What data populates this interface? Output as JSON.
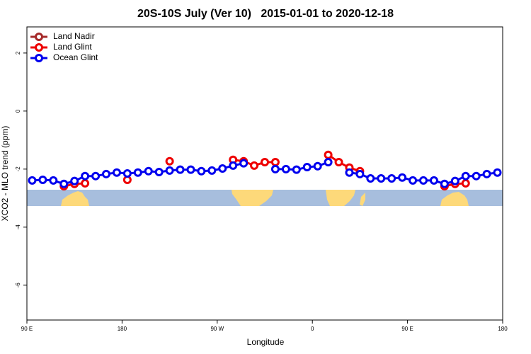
{
  "chart_data": {
    "type": "line",
    "title": "20S-10S July (Ver 10)   2015-01-01 to 2020-12-18",
    "xlabel": "Longitude",
    "ylabel": "XCO2 - MLO trend (ppm)",
    "x": [
      95,
      105,
      115,
      125,
      135,
      145,
      155,
      165,
      175,
      185,
      195,
      205,
      215,
      225,
      235,
      245,
      255,
      265,
      275,
      285,
      295,
      305,
      315,
      325,
      335,
      345,
      355,
      365,
      375,
      385,
      395,
      405,
      415,
      425,
      435,
      445,
      455,
      465,
      475,
      485,
      495,
      505,
      515,
      525,
      535
    ],
    "xlim": [
      90,
      540
    ],
    "xticks": [
      {
        "value": 90,
        "label": "90 E"
      },
      {
        "value": 180,
        "label": "180"
      },
      {
        "value": 270,
        "label": "90 W"
      },
      {
        "value": 360,
        "label": "0"
      },
      {
        "value": 450,
        "label": "90 E"
      },
      {
        "value": 540,
        "label": "180"
      }
    ],
    "ylim": [
      -7.2,
      2.9
    ],
    "yticks": [
      2,
      0,
      -2,
      -4,
      -6
    ],
    "legend": "top-left",
    "series": [
      {
        "name": "Land Nadir",
        "color": "#a52a2a",
        "values": [
          null,
          null,
          null,
          null,
          null,
          null,
          null,
          null,
          null,
          null,
          null,
          null,
          null,
          null,
          null,
          null,
          null,
          null,
          null,
          null,
          null,
          null,
          null,
          null,
          null,
          null,
          null,
          null,
          null,
          null,
          null,
          null,
          null,
          null,
          null,
          null,
          null,
          null,
          null,
          null,
          null,
          null,
          null,
          null,
          null
        ]
      },
      {
        "name": "Land Glint",
        "color": "#ee0000",
        "values": [
          null,
          null,
          null,
          -2.59,
          -2.51,
          -2.49,
          null,
          null,
          null,
          -2.37,
          null,
          null,
          null,
          -1.73,
          null,
          null,
          null,
          null,
          null,
          -1.68,
          -1.73,
          -1.88,
          -1.76,
          -1.76,
          null,
          null,
          null,
          null,
          -1.51,
          -1.76,
          -1.95,
          -2.07,
          null,
          null,
          null,
          null,
          null,
          null,
          null,
          -2.59,
          -2.51,
          -2.49,
          null,
          null,
          null
        ]
      },
      {
        "name": "Ocean Glint",
        "color": "#0000ee",
        "values": [
          -2.39,
          -2.37,
          -2.39,
          -2.51,
          -2.41,
          -2.24,
          -2.24,
          -2.17,
          -2.12,
          -2.15,
          -2.12,
          -2.07,
          -2.1,
          -2.05,
          -2.02,
          -2.02,
          -2.07,
          -2.05,
          -1.98,
          -1.88,
          -1.8,
          null,
          null,
          -2.0,
          -2.0,
          -2.02,
          -1.93,
          -1.9,
          -1.76,
          null,
          -2.12,
          -2.17,
          -2.32,
          -2.32,
          -2.32,
          -2.29,
          -2.39,
          -2.39,
          -2.39,
          -2.51,
          -2.41,
          -2.24,
          -2.24,
          -2.17,
          -2.12
        ]
      }
    ]
  }
}
